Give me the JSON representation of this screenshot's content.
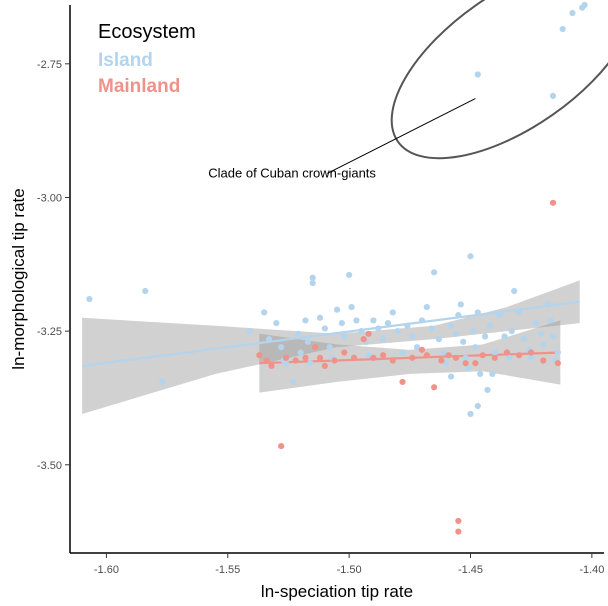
{
  "chart_data": {
    "type": "scatter",
    "xlabel": "ln-speciation tip rate",
    "ylabel": "ln-morphological tip rate",
    "xlim": [
      -1.615,
      -1.395
    ],
    "ylim": [
      -3.665,
      -2.64
    ],
    "x_ticks": [
      -1.6,
      -1.55,
      -1.5,
      -1.45,
      -1.4
    ],
    "x_tick_labels": [
      "-1.60",
      "-1.55",
      "-1.50",
      "-1.45",
      "-1.40"
    ],
    "y_ticks": [
      -3.5,
      -3.25,
      -3.0,
      -2.75
    ],
    "y_tick_labels": [
      "-3.50",
      "-3.25",
      "-3.00",
      "-2.75"
    ],
    "grid": false,
    "legend": {
      "title": "Ecosystem",
      "position": "top-left",
      "entries": [
        {
          "label": "Island",
          "color": "#b3d4ec"
        },
        {
          "label": "Mainland",
          "color": "#f0928a"
        }
      ]
    },
    "series": [
      {
        "name": "Island",
        "color": "#b3d4ec",
        "points": [
          [
            -1.607,
            -3.19
          ],
          [
            -1.584,
            -3.175
          ],
          [
            -1.577,
            -3.345
          ],
          [
            -1.541,
            -3.25
          ],
          [
            -1.535,
            -3.215
          ],
          [
            -1.533,
            -3.265
          ],
          [
            -1.53,
            -3.235
          ],
          [
            -1.528,
            -3.28
          ],
          [
            -1.526,
            -3.31
          ],
          [
            -1.523,
            -3.345
          ],
          [
            -1.521,
            -3.255
          ],
          [
            -1.518,
            -3.23
          ],
          [
            -1.517,
            -3.27
          ],
          [
            -1.516,
            -3.31
          ],
          [
            -1.515,
            -3.16
          ],
          [
            -1.515,
            -3.15
          ],
          [
            -1.512,
            -3.225
          ],
          [
            -1.51,
            -3.245
          ],
          [
            -1.508,
            -3.28
          ],
          [
            -1.507,
            -3.3
          ],
          [
            -1.505,
            -3.21
          ],
          [
            -1.503,
            -3.235
          ],
          [
            -1.502,
            -3.26
          ],
          [
            -1.5,
            -3.145
          ],
          [
            -1.499,
            -3.205
          ],
          [
            -1.497,
            -3.23
          ],
          [
            -1.495,
            -3.25
          ],
          [
            -1.493,
            -3.27
          ],
          [
            -1.492,
            -3.295
          ],
          [
            -1.49,
            -3.23
          ],
          [
            -1.488,
            -3.245
          ],
          [
            -1.486,
            -3.265
          ],
          [
            -1.484,
            -3.235
          ],
          [
            -1.482,
            -3.215
          ],
          [
            -1.48,
            -3.25
          ],
          [
            -1.478,
            -3.29
          ],
          [
            -1.476,
            -3.24
          ],
          [
            -1.474,
            -3.26
          ],
          [
            -1.472,
            -3.28
          ],
          [
            -1.47,
            -3.23
          ],
          [
            -1.468,
            -3.205
          ],
          [
            -1.466,
            -3.245
          ],
          [
            -1.465,
            -3.14
          ],
          [
            -1.463,
            -3.265
          ],
          [
            -1.461,
            -3.29
          ],
          [
            -1.46,
            -3.31
          ],
          [
            -1.458,
            -3.24
          ],
          [
            -1.456,
            -3.255
          ],
          [
            -1.455,
            -3.22
          ],
          [
            -1.454,
            -3.2
          ],
          [
            -1.453,
            -3.27
          ],
          [
            -1.452,
            -3.3
          ],
          [
            -1.451,
            -3.32
          ],
          [
            -1.45,
            -3.11
          ],
          [
            -1.449,
            -3.25
          ],
          [
            -1.448,
            -3.28
          ],
          [
            -1.447,
            -3.215
          ],
          [
            -1.446,
            -3.33
          ],
          [
            -1.444,
            -3.26
          ],
          [
            -1.442,
            -3.24
          ],
          [
            -1.44,
            -3.29
          ],
          [
            -1.438,
            -3.22
          ],
          [
            -1.436,
            -3.26
          ],
          [
            -1.434,
            -3.3
          ],
          [
            -1.433,
            -3.25
          ],
          [
            -1.432,
            -3.175
          ],
          [
            -1.43,
            -3.215
          ],
          [
            -1.428,
            -3.265
          ],
          [
            -1.426,
            -3.285
          ],
          [
            -1.425,
            -3.3
          ],
          [
            -1.423,
            -3.235
          ],
          [
            -1.421,
            -3.255
          ],
          [
            -1.42,
            -3.275
          ],
          [
            -1.418,
            -3.2
          ],
          [
            -1.417,
            -3.23
          ],
          [
            -1.416,
            -3.26
          ],
          [
            -1.415,
            -3.305
          ],
          [
            -1.414,
            -3.29
          ],
          [
            -1.45,
            -3.405
          ],
          [
            -1.447,
            -3.39
          ],
          [
            -1.443,
            -3.36
          ],
          [
            -1.441,
            -3.33
          ],
          [
            -1.458,
            -3.335
          ],
          [
            -1.527,
            -3.305
          ],
          [
            -1.52,
            -3.29
          ],
          [
            -1.447,
            -2.77
          ],
          [
            -1.416,
            -2.81
          ],
          [
            -1.412,
            -2.685
          ],
          [
            -1.408,
            -2.655
          ],
          [
            -1.404,
            -2.645
          ],
          [
            -1.403,
            -2.64
          ]
        ]
      },
      {
        "name": "Mainland",
        "color": "#f0928a",
        "points": [
          [
            -1.537,
            -3.295
          ],
          [
            -1.534,
            -3.305
          ],
          [
            -1.532,
            -3.315
          ],
          [
            -1.528,
            -3.465
          ],
          [
            -1.526,
            -3.3
          ],
          [
            -1.522,
            -3.305
          ],
          [
            -1.518,
            -3.3
          ],
          [
            -1.514,
            -3.28
          ],
          [
            -1.512,
            -3.3
          ],
          [
            -1.51,
            -3.315
          ],
          [
            -1.506,
            -3.305
          ],
          [
            -1.502,
            -3.29
          ],
          [
            -1.498,
            -3.3
          ],
          [
            -1.494,
            -3.265
          ],
          [
            -1.492,
            -3.255
          ],
          [
            -1.49,
            -3.3
          ],
          [
            -1.486,
            -3.295
          ],
          [
            -1.482,
            -3.305
          ],
          [
            -1.478,
            -3.345
          ],
          [
            -1.474,
            -3.3
          ],
          [
            -1.47,
            -3.285
          ],
          [
            -1.468,
            -3.295
          ],
          [
            -1.465,
            -3.355
          ],
          [
            -1.462,
            -3.305
          ],
          [
            -1.459,
            -3.295
          ],
          [
            -1.456,
            -3.3
          ],
          [
            -1.455,
            -3.625
          ],
          [
            -1.455,
            -3.605
          ],
          [
            -1.452,
            -3.31
          ],
          [
            -1.448,
            -3.31
          ],
          [
            -1.445,
            -3.295
          ],
          [
            -1.44,
            -3.3
          ],
          [
            -1.435,
            -3.29
          ],
          [
            -1.43,
            -3.295
          ],
          [
            -1.425,
            -3.29
          ],
          [
            -1.42,
            -3.305
          ],
          [
            -1.416,
            -3.01
          ],
          [
            -1.414,
            -3.31
          ]
        ]
      }
    ],
    "fits": [
      {
        "series": "Island",
        "color": "#b3d4ec",
        "x_range": [
          -1.61,
          -1.405
        ],
        "line": [
          [
            -1.61,
            -3.315
          ],
          [
            -1.405,
            -3.195
          ]
        ],
        "band_upper": [
          [
            -1.61,
            -3.225
          ],
          [
            -1.555,
            -3.24
          ],
          [
            -1.505,
            -3.255
          ],
          [
            -1.465,
            -3.24
          ],
          [
            -1.435,
            -3.205
          ],
          [
            -1.405,
            -3.155
          ]
        ],
        "band_lower": [
          [
            -1.61,
            -3.405
          ],
          [
            -1.555,
            -3.33
          ],
          [
            -1.505,
            -3.28
          ],
          [
            -1.465,
            -3.265
          ],
          [
            -1.435,
            -3.25
          ],
          [
            -1.405,
            -3.235
          ]
        ]
      },
      {
        "series": "Mainland",
        "color": "#f0928a",
        "x_range": [
          -1.537,
          -1.413
        ],
        "line": [
          [
            -1.537,
            -3.31
          ],
          [
            -1.413,
            -3.29
          ]
        ],
        "band_upper": [
          [
            -1.537,
            -3.255
          ],
          [
            -1.505,
            -3.275
          ],
          [
            -1.475,
            -3.285
          ],
          [
            -1.445,
            -3.275
          ],
          [
            -1.413,
            -3.23
          ]
        ],
        "band_lower": [
          [
            -1.537,
            -3.365
          ],
          [
            -1.505,
            -3.345
          ],
          [
            -1.475,
            -3.33
          ],
          [
            -1.445,
            -3.325
          ],
          [
            -1.413,
            -3.35
          ]
        ]
      }
    ],
    "annotation": {
      "text": "Clade of Cuban crown-giants",
      "ellipse_center": [
        -1.432,
        -2.743
      ],
      "ellipse_radii": [
        0.0195,
        0.136
      ],
      "ellipse_rotation_deg": -35,
      "label_anchor": [
        -1.5235,
        -2.955
      ],
      "leader_from": [
        -1.509,
        -2.955
      ],
      "leader_to": [
        -1.448,
        -2.815
      ]
    }
  }
}
